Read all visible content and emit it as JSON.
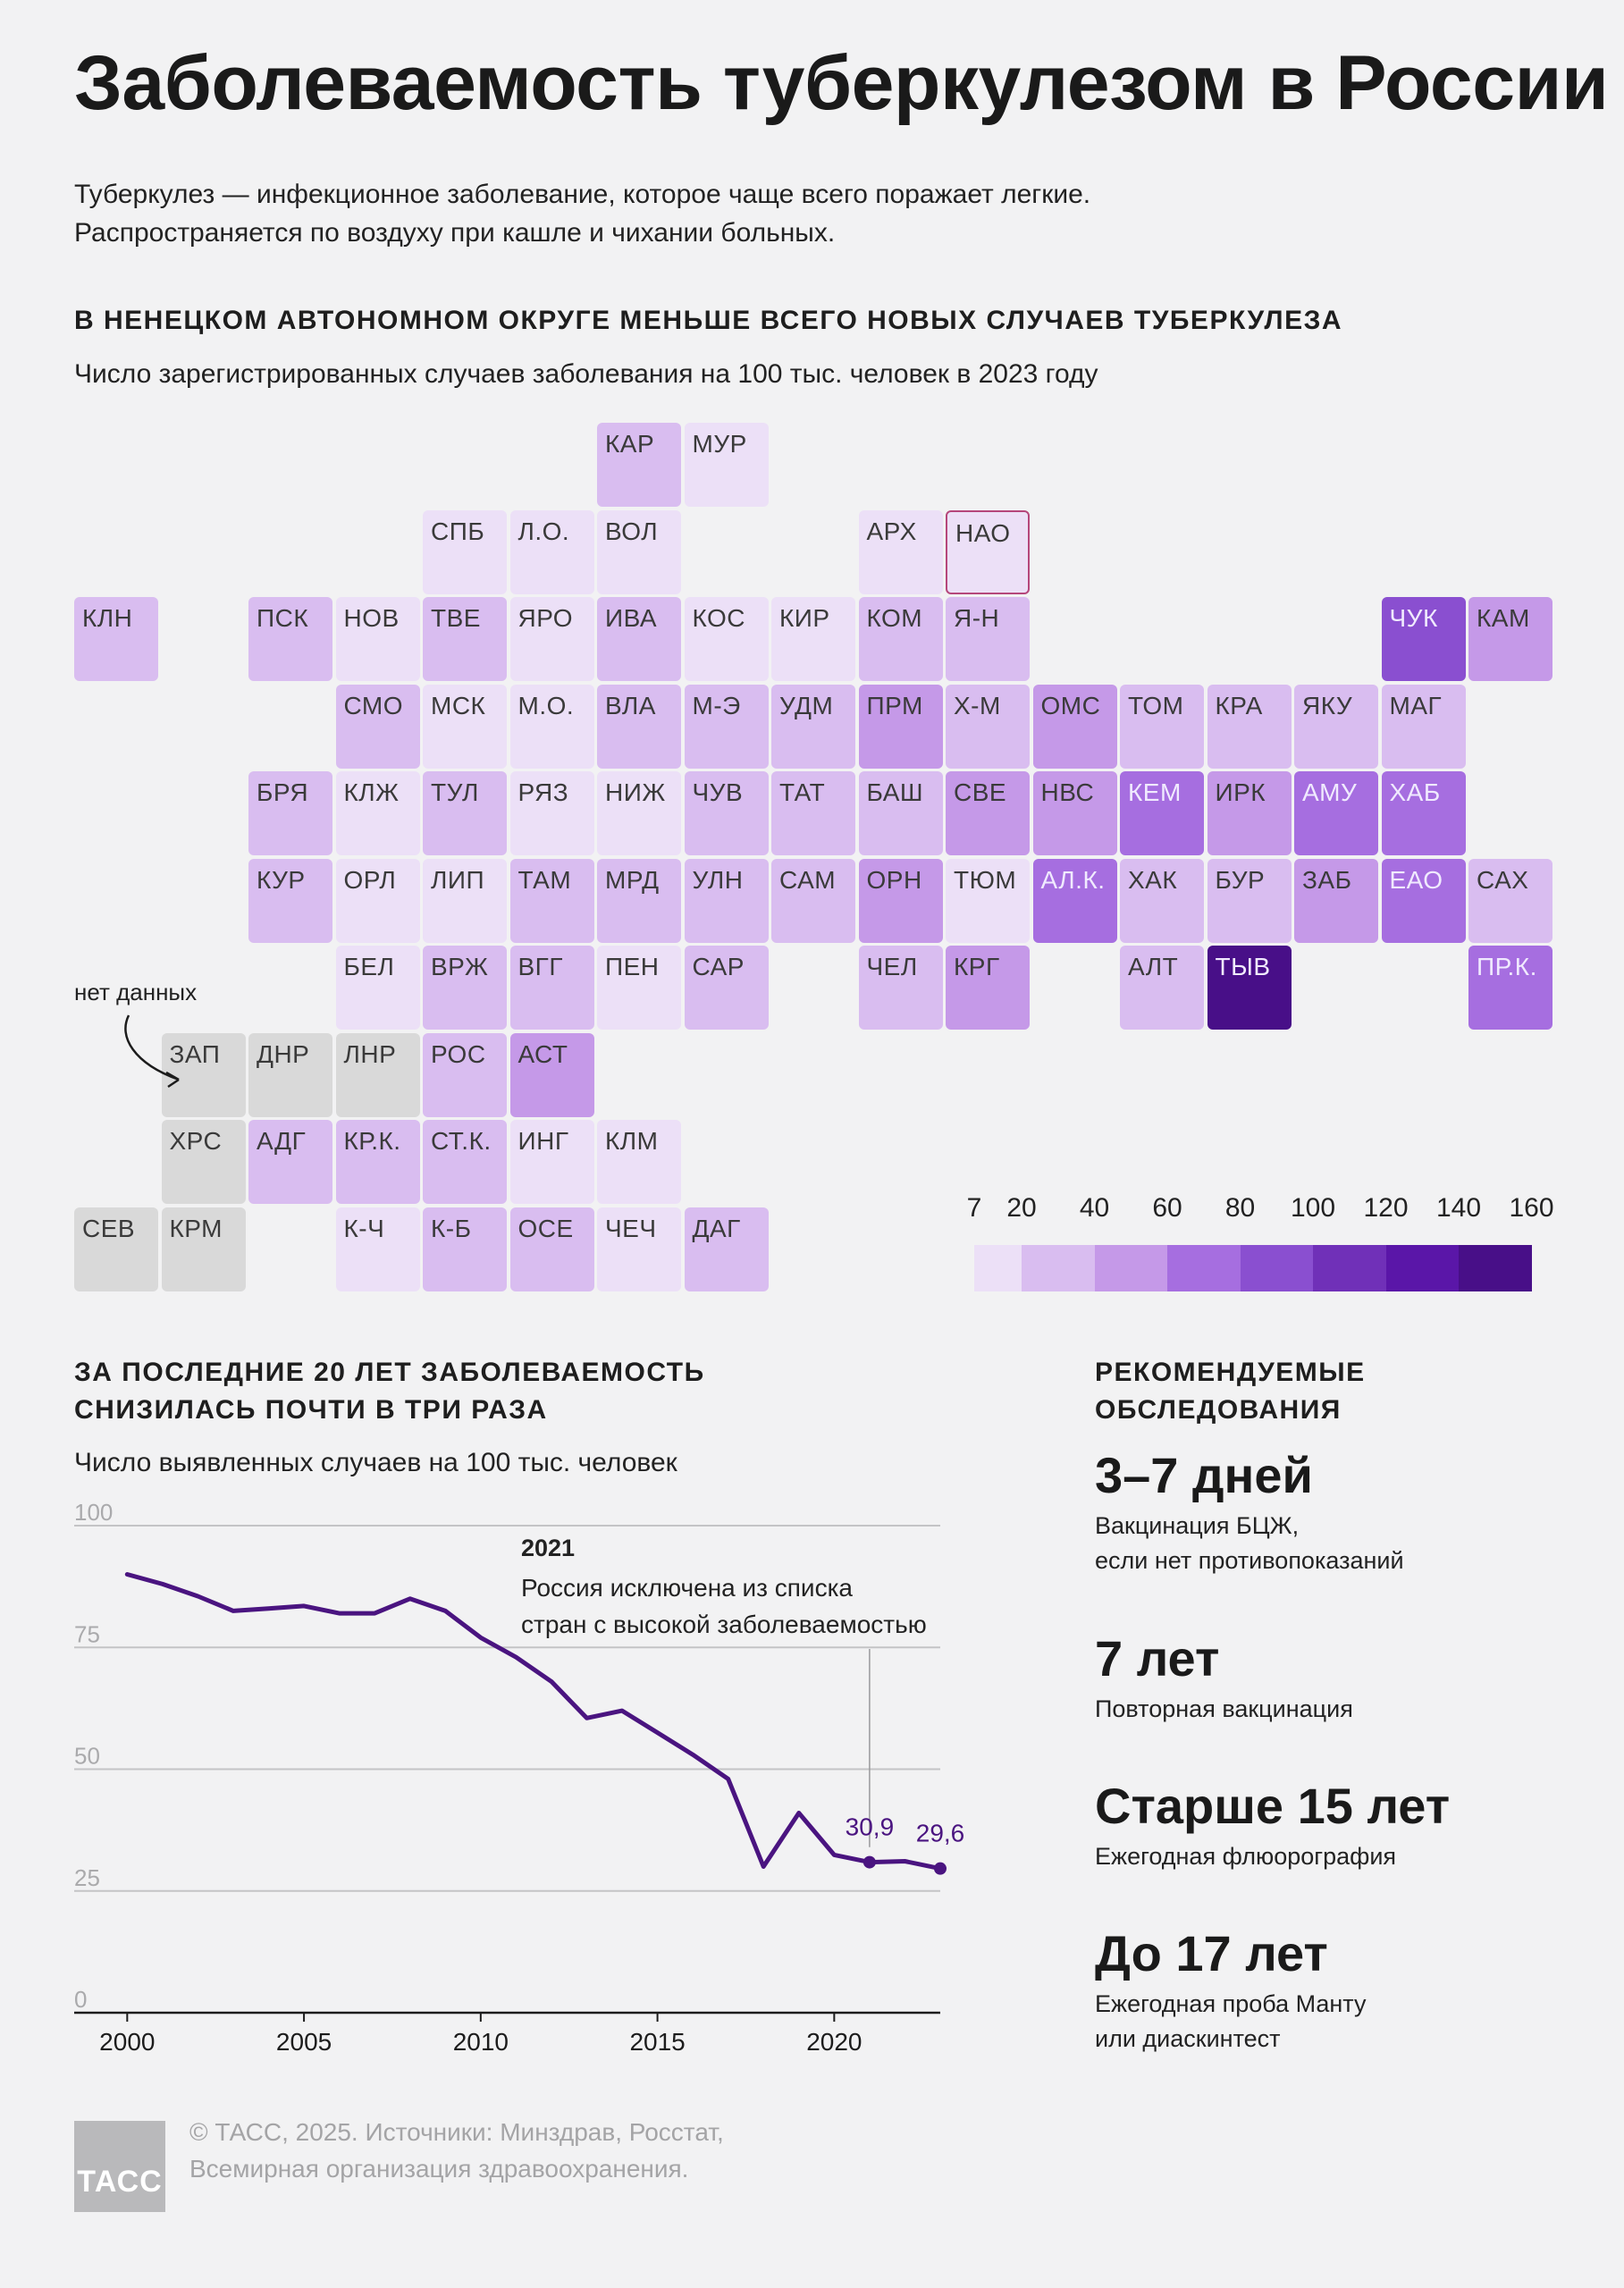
{
  "title": "Заболеваемость туберкулезом в России",
  "intro": {
    "line1": "Туберкулез — инфекционное заболевание, которое чаще всего поражает легкие.",
    "line2": "Распространяется по воздуху при кашле и чихании больных."
  },
  "map_section": {
    "heading": "В НЕНЕЦКОМ АВТОНОМНОМ ОКРУГЕ МЕНЬШЕ ВСЕГО НОВЫХ СЛУЧАЕВ ТУБЕРКУЛЕЗА",
    "subtitle": "Число зарегистрированных случаев заболевания на 100 тыс. человек в 2023 году",
    "nodata_label": "нет данных"
  },
  "trend_section": {
    "heading_line1": "ЗА ПОСЛЕДНИЕ 20 ЛЕТ ЗАБОЛЕВАЕМОСТЬ",
    "heading_line2": "СНИЗИЛАСЬ ПОЧТИ В ТРИ РАЗА",
    "subtitle": "Число выявленных случаев на 100 тыс. человек",
    "annotation_year": "2021",
    "annotation_line1": "Россия исключена из списка",
    "annotation_line2": "стран с высокой заболеваемостью"
  },
  "recommendations": {
    "heading_line1": "РЕКОМЕНДУЕМЫЕ",
    "heading_line2": "ОБСЛЕДОВАНИЯ",
    "items": [
      {
        "big": "3–7 дней",
        "line1": "Вакцинация БЦЖ,",
        "line2": "если нет противопоказаний"
      },
      {
        "big": "7 лет",
        "line1": "Повторная вакцинация",
        "line2": ""
      },
      {
        "big": "Старше 15 лет",
        "line1": "Ежегодная флюорография",
        "line2": ""
      },
      {
        "big": "До 17 лет",
        "line1": "Ежегодная проба Манту",
        "line2": "или диаскинтест"
      }
    ]
  },
  "footer": {
    "logo": "ТАСС",
    "line1": "© ТАСС, 2025. Источники: Минздрав, Росстат,",
    "line2": "Всемирная организация здравоохранения."
  },
  "colors": {
    "nodata": "#d9d9d9",
    "scale": [
      "#ece0f7",
      "#d9bdf0",
      "#c599e8",
      "#a66ee0",
      "#8a4fd0",
      "#7030b8",
      "#5a16a8",
      "#480f88"
    ],
    "line": "#4a1480",
    "highlight_border": "#b5477b"
  },
  "chart_data": [
    {
      "type": "heatmap",
      "title": "В НЕНЕЦКОМ АВТОНОМНОМ ОКРУГЕ МЕНЬШЕ ВСЕГО НОВЫХ СЛУЧАЕВ ТУБЕРКУЛЕЗА",
      "legend_ticks": [
        7,
        20,
        40,
        60,
        80,
        100,
        120,
        140,
        160
      ],
      "highlighted": "НАО",
      "no_data": [
        "ЗАП",
        "ДНР",
        "ЛНР",
        "ХРС",
        "СЕВ",
        "КРМ"
      ],
      "regions": [
        {
          "label": "КАР",
          "bin": 1,
          "row": 0,
          "col": 6
        },
        {
          "label": "МУР",
          "bin": 0,
          "row": 0,
          "col": 7
        },
        {
          "label": "СПБ",
          "bin": 0,
          "row": 1,
          "col": 4
        },
        {
          "label": "Л.О.",
          "bin": 0,
          "row": 1,
          "col": 5
        },
        {
          "label": "ВОЛ",
          "bin": 0,
          "row": 1,
          "col": 6
        },
        {
          "label": "АРХ",
          "bin": 0,
          "row": 1,
          "col": 9
        },
        {
          "label": "НАО",
          "bin": 0,
          "row": 1,
          "col": 10
        },
        {
          "label": "КЛН",
          "bin": 1,
          "row": 2,
          "col": 0
        },
        {
          "label": "ПСК",
          "bin": 1,
          "row": 2,
          "col": 2
        },
        {
          "label": "НОВ",
          "bin": 0,
          "row": 2,
          "col": 3
        },
        {
          "label": "ТВЕ",
          "bin": 1,
          "row": 2,
          "col": 4
        },
        {
          "label": "ЯРО",
          "bin": 0,
          "row": 2,
          "col": 5
        },
        {
          "label": "ИВА",
          "bin": 1,
          "row": 2,
          "col": 6
        },
        {
          "label": "КОС",
          "bin": 0,
          "row": 2,
          "col": 7
        },
        {
          "label": "КИР",
          "bin": 0,
          "row": 2,
          "col": 8
        },
        {
          "label": "КОМ",
          "bin": 1,
          "row": 2,
          "col": 9
        },
        {
          "label": "Я-Н",
          "bin": 1,
          "row": 2,
          "col": 10
        },
        {
          "label": "ЧУК",
          "bin": 4,
          "row": 2,
          "col": 15
        },
        {
          "label": "КАМ",
          "bin": 2,
          "row": 2,
          "col": 16
        },
        {
          "label": "СМО",
          "bin": 1,
          "row": 3,
          "col": 3
        },
        {
          "label": "МСК",
          "bin": 0,
          "row": 3,
          "col": 4
        },
        {
          "label": "М.О.",
          "bin": 0,
          "row": 3,
          "col": 5
        },
        {
          "label": "ВЛА",
          "bin": 1,
          "row": 3,
          "col": 6
        },
        {
          "label": "М-Э",
          "bin": 1,
          "row": 3,
          "col": 7
        },
        {
          "label": "УДМ",
          "bin": 1,
          "row": 3,
          "col": 8
        },
        {
          "label": "ПРМ",
          "bin": 2,
          "row": 3,
          "col": 9
        },
        {
          "label": "Х-М",
          "bin": 1,
          "row": 3,
          "col": 10
        },
        {
          "label": "ОМС",
          "bin": 2,
          "row": 3,
          "col": 11
        },
        {
          "label": "ТОМ",
          "bin": 1,
          "row": 3,
          "col": 12
        },
        {
          "label": "КРА",
          "bin": 1,
          "row": 3,
          "col": 13
        },
        {
          "label": "ЯКУ",
          "bin": 1,
          "row": 3,
          "col": 14
        },
        {
          "label": "МАГ",
          "bin": 1,
          "row": 3,
          "col": 15
        },
        {
          "label": "БРЯ",
          "bin": 1,
          "row": 4,
          "col": 2
        },
        {
          "label": "КЛЖ",
          "bin": 0,
          "row": 4,
          "col": 3
        },
        {
          "label": "ТУЛ",
          "bin": 1,
          "row": 4,
          "col": 4
        },
        {
          "label": "РЯЗ",
          "bin": 0,
          "row": 4,
          "col": 5
        },
        {
          "label": "НИЖ",
          "bin": 0,
          "row": 4,
          "col": 6
        },
        {
          "label": "ЧУВ",
          "bin": 1,
          "row": 4,
          "col": 7
        },
        {
          "label": "ТАТ",
          "bin": 1,
          "row": 4,
          "col": 8
        },
        {
          "label": "БАШ",
          "bin": 1,
          "row": 4,
          "col": 9
        },
        {
          "label": "СВЕ",
          "bin": 2,
          "row": 4,
          "col": 10
        },
        {
          "label": "НВС",
          "bin": 2,
          "row": 4,
          "col": 11
        },
        {
          "label": "КЕМ",
          "bin": 3,
          "row": 4,
          "col": 12
        },
        {
          "label": "ИРК",
          "bin": 2,
          "row": 4,
          "col": 13
        },
        {
          "label": "АМУ",
          "bin": 3,
          "row": 4,
          "col": 14
        },
        {
          "label": "ХАБ",
          "bin": 3,
          "row": 4,
          "col": 15
        },
        {
          "label": "КУР",
          "bin": 1,
          "row": 5,
          "col": 2
        },
        {
          "label": "ОРЛ",
          "bin": 0,
          "row": 5,
          "col": 3
        },
        {
          "label": "ЛИП",
          "bin": 0,
          "row": 5,
          "col": 4
        },
        {
          "label": "ТАМ",
          "bin": 1,
          "row": 5,
          "col": 5
        },
        {
          "label": "МРД",
          "bin": 1,
          "row": 5,
          "col": 6
        },
        {
          "label": "УЛН",
          "bin": 1,
          "row": 5,
          "col": 7
        },
        {
          "label": "САМ",
          "bin": 1,
          "row": 5,
          "col": 8
        },
        {
          "label": "ОРН",
          "bin": 2,
          "row": 5,
          "col": 9
        },
        {
          "label": "ТЮМ",
          "bin": 0,
          "row": 5,
          "col": 10
        },
        {
          "label": "АЛ.К.",
          "bin": 3,
          "row": 5,
          "col": 11
        },
        {
          "label": "ХАК",
          "bin": 1,
          "row": 5,
          "col": 12
        },
        {
          "label": "БУР",
          "bin": 1,
          "row": 5,
          "col": 13
        },
        {
          "label": "ЗАБ",
          "bin": 2,
          "row": 5,
          "col": 14
        },
        {
          "label": "ЕАО",
          "bin": 3,
          "row": 5,
          "col": 15
        },
        {
          "label": "САХ",
          "bin": 1,
          "row": 5,
          "col": 16
        },
        {
          "label": "БЕЛ",
          "bin": 0,
          "row": 6,
          "col": 3
        },
        {
          "label": "ВРЖ",
          "bin": 1,
          "row": 6,
          "col": 4
        },
        {
          "label": "ВГГ",
          "bin": 1,
          "row": 6,
          "col": 5
        },
        {
          "label": "ПЕН",
          "bin": 0,
          "row": 6,
          "col": 6
        },
        {
          "label": "САР",
          "bin": 1,
          "row": 6,
          "col": 7
        },
        {
          "label": "ЧЕЛ",
          "bin": 1,
          "row": 6,
          "col": 9
        },
        {
          "label": "КРГ",
          "bin": 2,
          "row": 6,
          "col": 10
        },
        {
          "label": "АЛТ",
          "bin": 1,
          "row": 6,
          "col": 12
        },
        {
          "label": "ТЫВ",
          "bin": 7,
          "row": 6,
          "col": 13
        },
        {
          "label": "ПР.К.",
          "bin": 3,
          "row": 6,
          "col": 16
        },
        {
          "label": "ЗАП",
          "bin": -1,
          "row": 7,
          "col": 1
        },
        {
          "label": "ДНР",
          "bin": -1,
          "row": 7,
          "col": 2
        },
        {
          "label": "ЛНР",
          "bin": -1,
          "row": 7,
          "col": 3
        },
        {
          "label": "РОС",
          "bin": 1,
          "row": 7,
          "col": 4
        },
        {
          "label": "АСТ",
          "bin": 2,
          "row": 7,
          "col": 5
        },
        {
          "label": "ХРС",
          "bin": -1,
          "row": 8,
          "col": 1
        },
        {
          "label": "АДГ",
          "bin": 1,
          "row": 8,
          "col": 2
        },
        {
          "label": "КР.К.",
          "bin": 1,
          "row": 8,
          "col": 3
        },
        {
          "label": "СТ.К.",
          "bin": 1,
          "row": 8,
          "col": 4
        },
        {
          "label": "ИНГ",
          "bin": 0,
          "row": 8,
          "col": 5
        },
        {
          "label": "КЛМ",
          "bin": 0,
          "row": 8,
          "col": 6
        },
        {
          "label": "СЕВ",
          "bin": -1,
          "row": 9,
          "col": 0
        },
        {
          "label": "КРМ",
          "bin": -1,
          "row": 9,
          "col": 1
        },
        {
          "label": "К-Ч",
          "bin": 0,
          "row": 9,
          "col": 3
        },
        {
          "label": "К-Б",
          "bin": 1,
          "row": 9,
          "col": 4
        },
        {
          "label": "ОСЕ",
          "bin": 1,
          "row": 9,
          "col": 5
        },
        {
          "label": "ЧЕЧ",
          "bin": 0,
          "row": 9,
          "col": 6
        },
        {
          "label": "ДАГ",
          "bin": 1,
          "row": 9,
          "col": 7
        }
      ]
    },
    {
      "type": "line",
      "title": "ЗА ПОСЛЕДНИЕ 20 ЛЕТ ЗАБОЛЕВАЕМОСТЬ СНИЗИЛАСЬ ПОЧТИ В ТРИ РАЗА",
      "ylabel": "Число выявленных случаев на 100 тыс. человек",
      "ylim": [
        0,
        100
      ],
      "yticks": [
        0,
        25,
        50,
        75,
        100
      ],
      "xlim": [
        1998.5,
        2023
      ],
      "xticks": [
        2000,
        2005,
        2010,
        2015,
        2020
      ],
      "grid": true,
      "x": [
        2000,
        2001,
        2002,
        2003,
        2004,
        2005,
        2006,
        2007,
        2008,
        2009,
        2010,
        2011,
        2012,
        2013,
        2014,
        2015,
        2016,
        2017,
        2018,
        2019,
        2020,
        2021,
        2022,
        2023
      ],
      "values": [
        90.0,
        88.0,
        85.5,
        82.5,
        83.0,
        83.5,
        82.0,
        82.0,
        85.0,
        82.5,
        77.0,
        73.0,
        68.0,
        60.5,
        62.0,
        57.5,
        53.0,
        48.0,
        30.0,
        41.0,
        32.4,
        30.9,
        31.1,
        29.6
      ],
      "labels": [
        {
          "x": 2021,
          "y": 30.9,
          "text": "30,9"
        },
        {
          "x": 2023,
          "y": 29.6,
          "text": "29,6"
        }
      ],
      "annotation": {
        "x": 2021,
        "year": "2021",
        "text": "Россия исключена из списка стран с высокой заболеваемостью"
      }
    }
  ]
}
